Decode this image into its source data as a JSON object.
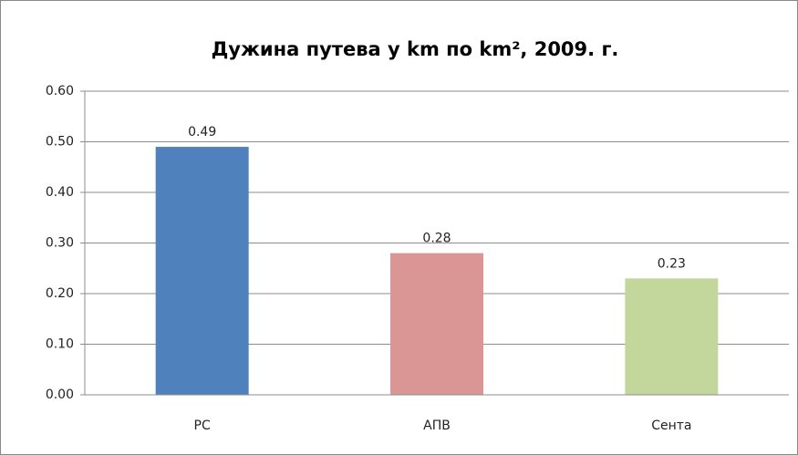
{
  "chart_data": {
    "type": "bar",
    "title": "Дужина путева у km по km², 2009. г.",
    "categories": [
      "РС",
      "АПВ",
      "Сента"
    ],
    "values": [
      0.49,
      0.28,
      0.23
    ],
    "colors": [
      "#4f81bd",
      "#d99694",
      "#c3d69b"
    ],
    "ylim": [
      0,
      0.6
    ],
    "yticks": [
      {
        "value": 0,
        "label": "0.00"
      },
      {
        "value": 0.1,
        "label": "0.10"
      },
      {
        "value": 0.2,
        "label": "0.20"
      },
      {
        "value": 0.3,
        "label": "0.30"
      },
      {
        "value": 0.4,
        "label": "0.40"
      },
      {
        "value": 0.5,
        "label": "0.50"
      },
      {
        "value": 0.6,
        "label": "0.60"
      }
    ],
    "grid": true
  }
}
